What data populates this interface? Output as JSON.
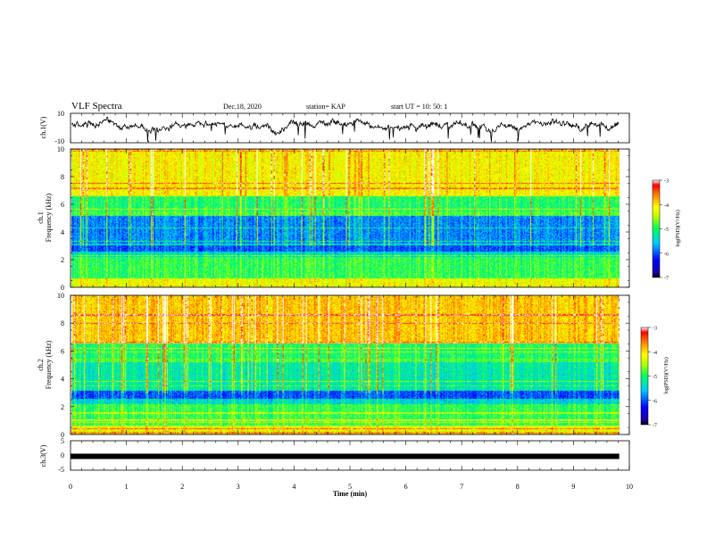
{
  "header": {
    "title": "VLF Spectra",
    "date": "Dec.18, 2020",
    "station": "station= KAP",
    "start": "start  UT  =   10: 50: 1"
  },
  "chart_data": [
    {
      "type": "line",
      "name": "ch1-waveform",
      "ylabel": "ch.1(V)",
      "ylim": [
        -10,
        10
      ],
      "yticks": [
        "10",
        "-10"
      ],
      "xlim": [
        0,
        10
      ],
      "data_until": 9.82,
      "grid": false,
      "color": "#000000"
    },
    {
      "type": "heatmap",
      "name": "ch1-spectrogram",
      "ylabel": "ch.1\nFrequency  (kHz)",
      "ylim": [
        0,
        10
      ],
      "yticks": [
        "0",
        "2",
        "4",
        "6",
        "8",
        "10"
      ],
      "xlim": [
        0,
        10
      ],
      "data_until": 9.82,
      "colorbar": {
        "label": "log(PSD)(V²/Hz)",
        "range": [
          -7,
          -3
        ],
        "ticks": [
          "-3",
          "-4",
          "-5",
          "-6",
          "-7"
        ]
      }
    },
    {
      "type": "heatmap",
      "name": "ch2-spectrogram",
      "ylabel": "ch.2\nFrequency  (kHz)",
      "ylim": [
        0,
        10
      ],
      "yticks": [
        "0",
        "2",
        "4",
        "6",
        "8",
        "10"
      ],
      "xlim": [
        0,
        10
      ],
      "data_until": 9.82,
      "colorbar": {
        "label": "log(PSD)(V²/Hz)",
        "range": [
          -7,
          -3
        ],
        "ticks": [
          "-3",
          "-4",
          "-5",
          "-6",
          "-7"
        ]
      }
    },
    {
      "type": "line",
      "name": "ch3-signal",
      "ylabel": "ch.3(V)",
      "ylim": [
        -5,
        5
      ],
      "yticks": [
        "5",
        "0",
        "-5"
      ],
      "xlim": [
        0,
        10
      ],
      "data_until": 9.82,
      "value": -0.3,
      "color": "#000000"
    }
  ],
  "xaxis": {
    "label": "Time  (min)",
    "ticks": [
      "0",
      "1",
      "2",
      "3",
      "4",
      "5",
      "6",
      "7",
      "8",
      "9",
      "10"
    ]
  }
}
